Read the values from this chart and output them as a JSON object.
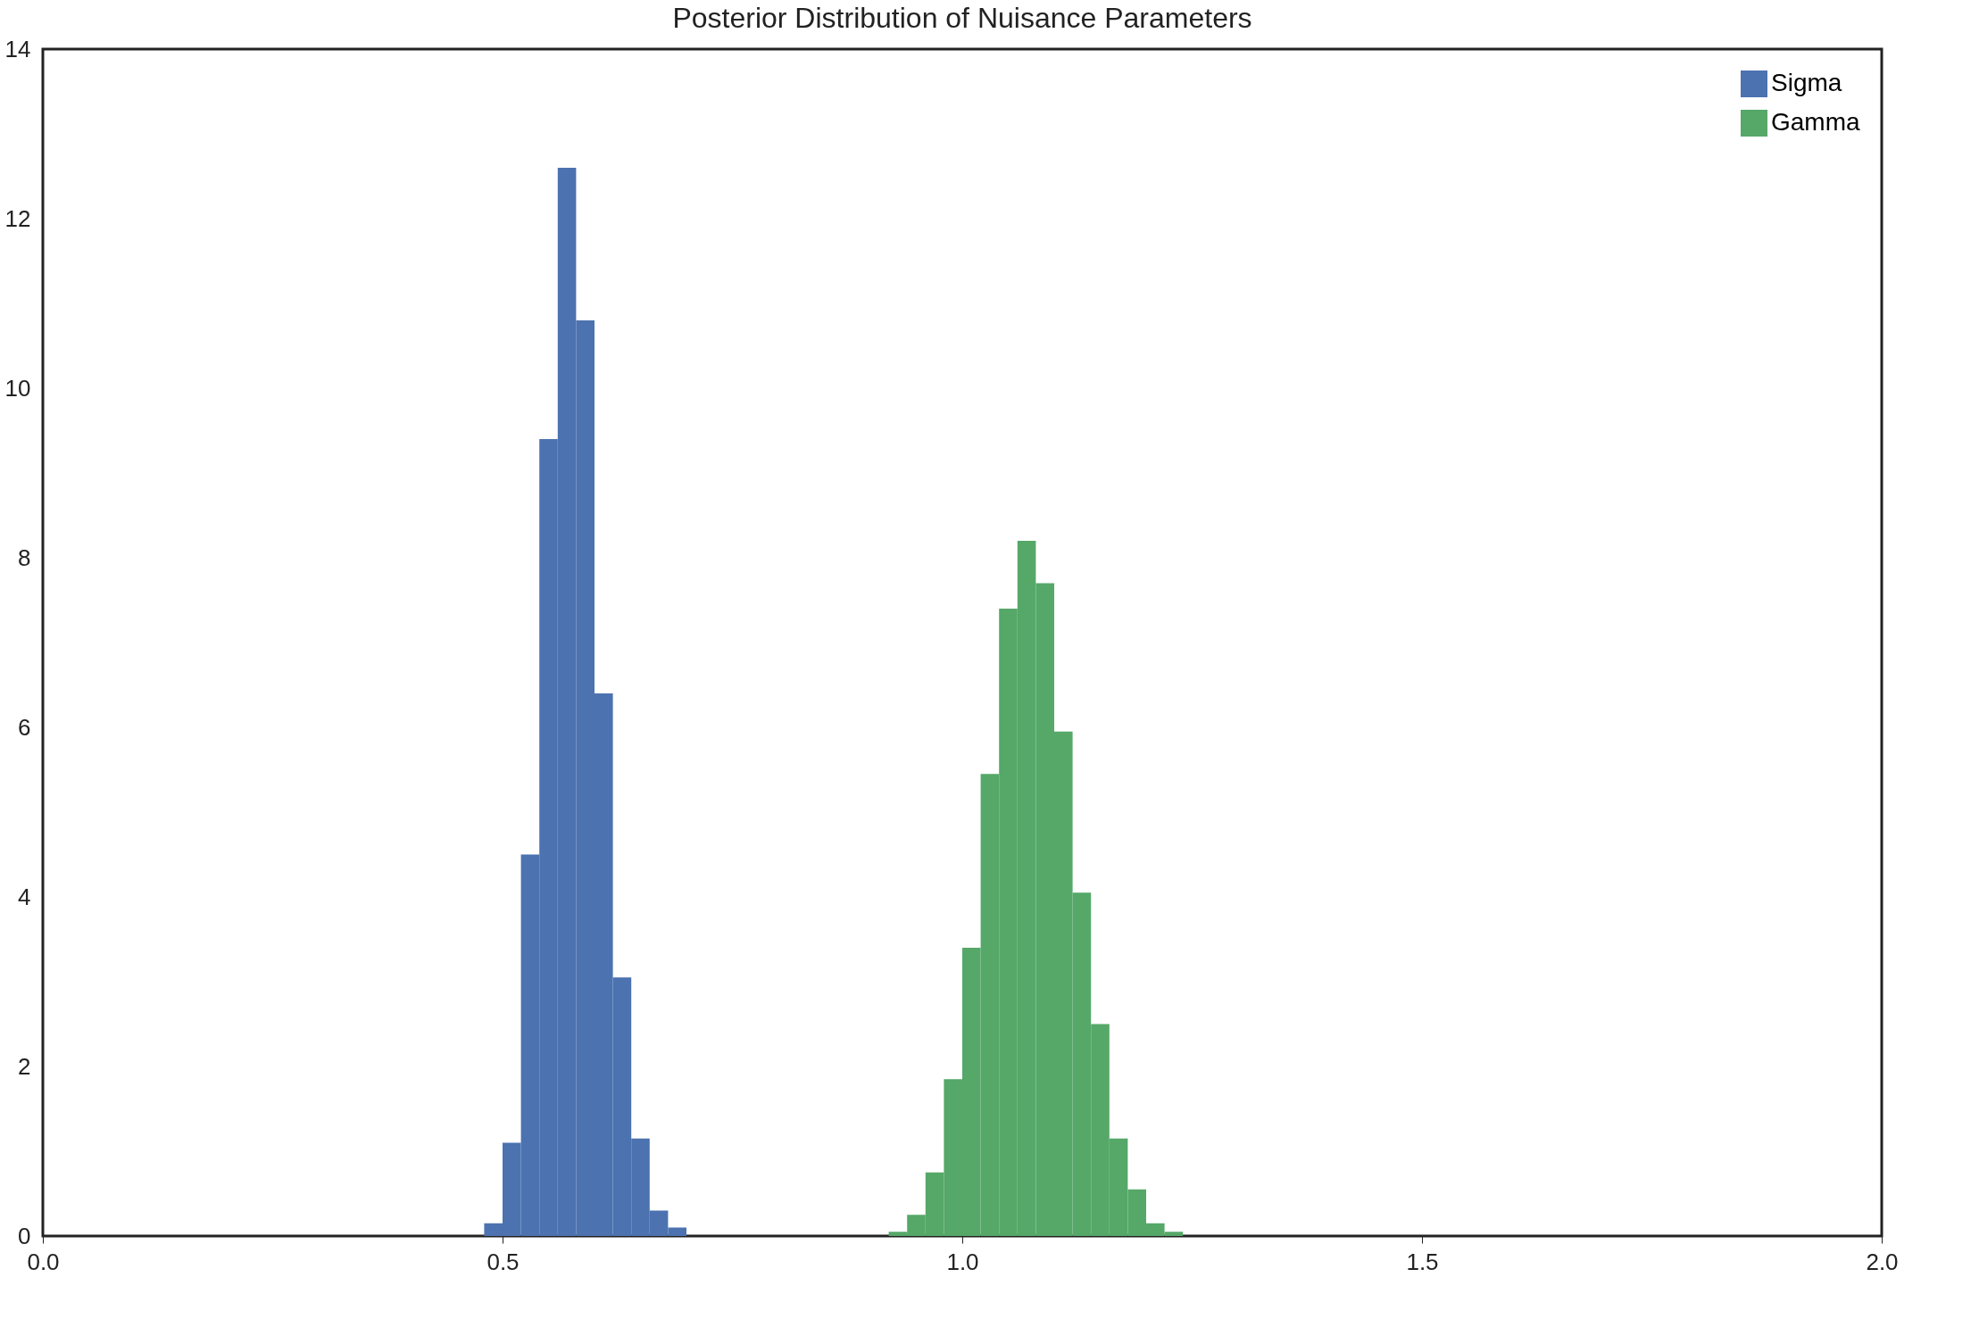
{
  "chart_data": {
    "type": "histogram",
    "title": "Posterior Distribution of Nuisance Parameters",
    "xlim": [
      0,
      2
    ],
    "xticks": [
      {
        "value": 0,
        "label": "0.0"
      },
      {
        "value": 0.5,
        "label": "0.5"
      },
      {
        "value": 1,
        "label": "1.0"
      },
      {
        "value": 1.5,
        "label": "1.5"
      },
      {
        "value": 2,
        "label": "2.0"
      }
    ],
    "ylim": [
      0,
      14
    ],
    "yticks": [
      0,
      2,
      4,
      6,
      8,
      10,
      12,
      14
    ],
    "grid": false,
    "legend": "top right",
    "bins": [
      0.48,
      0.5,
      0.52,
      0.54,
      0.56,
      0.58,
      0.6,
      0.62,
      0.64,
      0.66,
      0.68,
      0.7,
      0.72,
      0.74,
      0.76,
      0.78,
      0.8,
      0.82,
      0.84,
      0.86,
      0.88,
      0.9,
      0.92,
      0.94,
      0.96,
      0.98,
      1.0,
      1.02,
      1.04,
      1.06,
      1.08,
      1.1,
      1.12,
      1.14,
      1.16,
      1.18,
      1.2,
      1.22,
      1.24
    ],
    "series": [
      {
        "name": "Sigma",
        "color": "#4c72b0",
        "values": [
          0.15,
          1.1,
          4.5,
          9.4,
          12.6,
          10.8,
          6.4,
          3.05,
          1.15,
          0.3,
          0.1,
          null,
          null,
          null,
          null,
          null,
          null,
          null,
          null,
          null,
          null,
          null,
          null,
          null,
          null,
          null,
          null,
          null,
          null,
          null,
          null,
          null,
          null,
          null,
          null,
          null,
          null,
          null
        ]
      },
      {
        "name": "Gamma",
        "color": "#55a868",
        "values": [
          null,
          null,
          null,
          null,
          null,
          null,
          null,
          null,
          null,
          null,
          null,
          null,
          null,
          null,
          null,
          null,
          null,
          null,
          null,
          null,
          null,
          null,
          0.05,
          0.25,
          0.75,
          1.85,
          3.4,
          5.45,
          7.4,
          8.2,
          7.7,
          5.95,
          4.05,
          2.5,
          1.15,
          0.55,
          0.15,
          0.05
        ]
      }
    ]
  }
}
